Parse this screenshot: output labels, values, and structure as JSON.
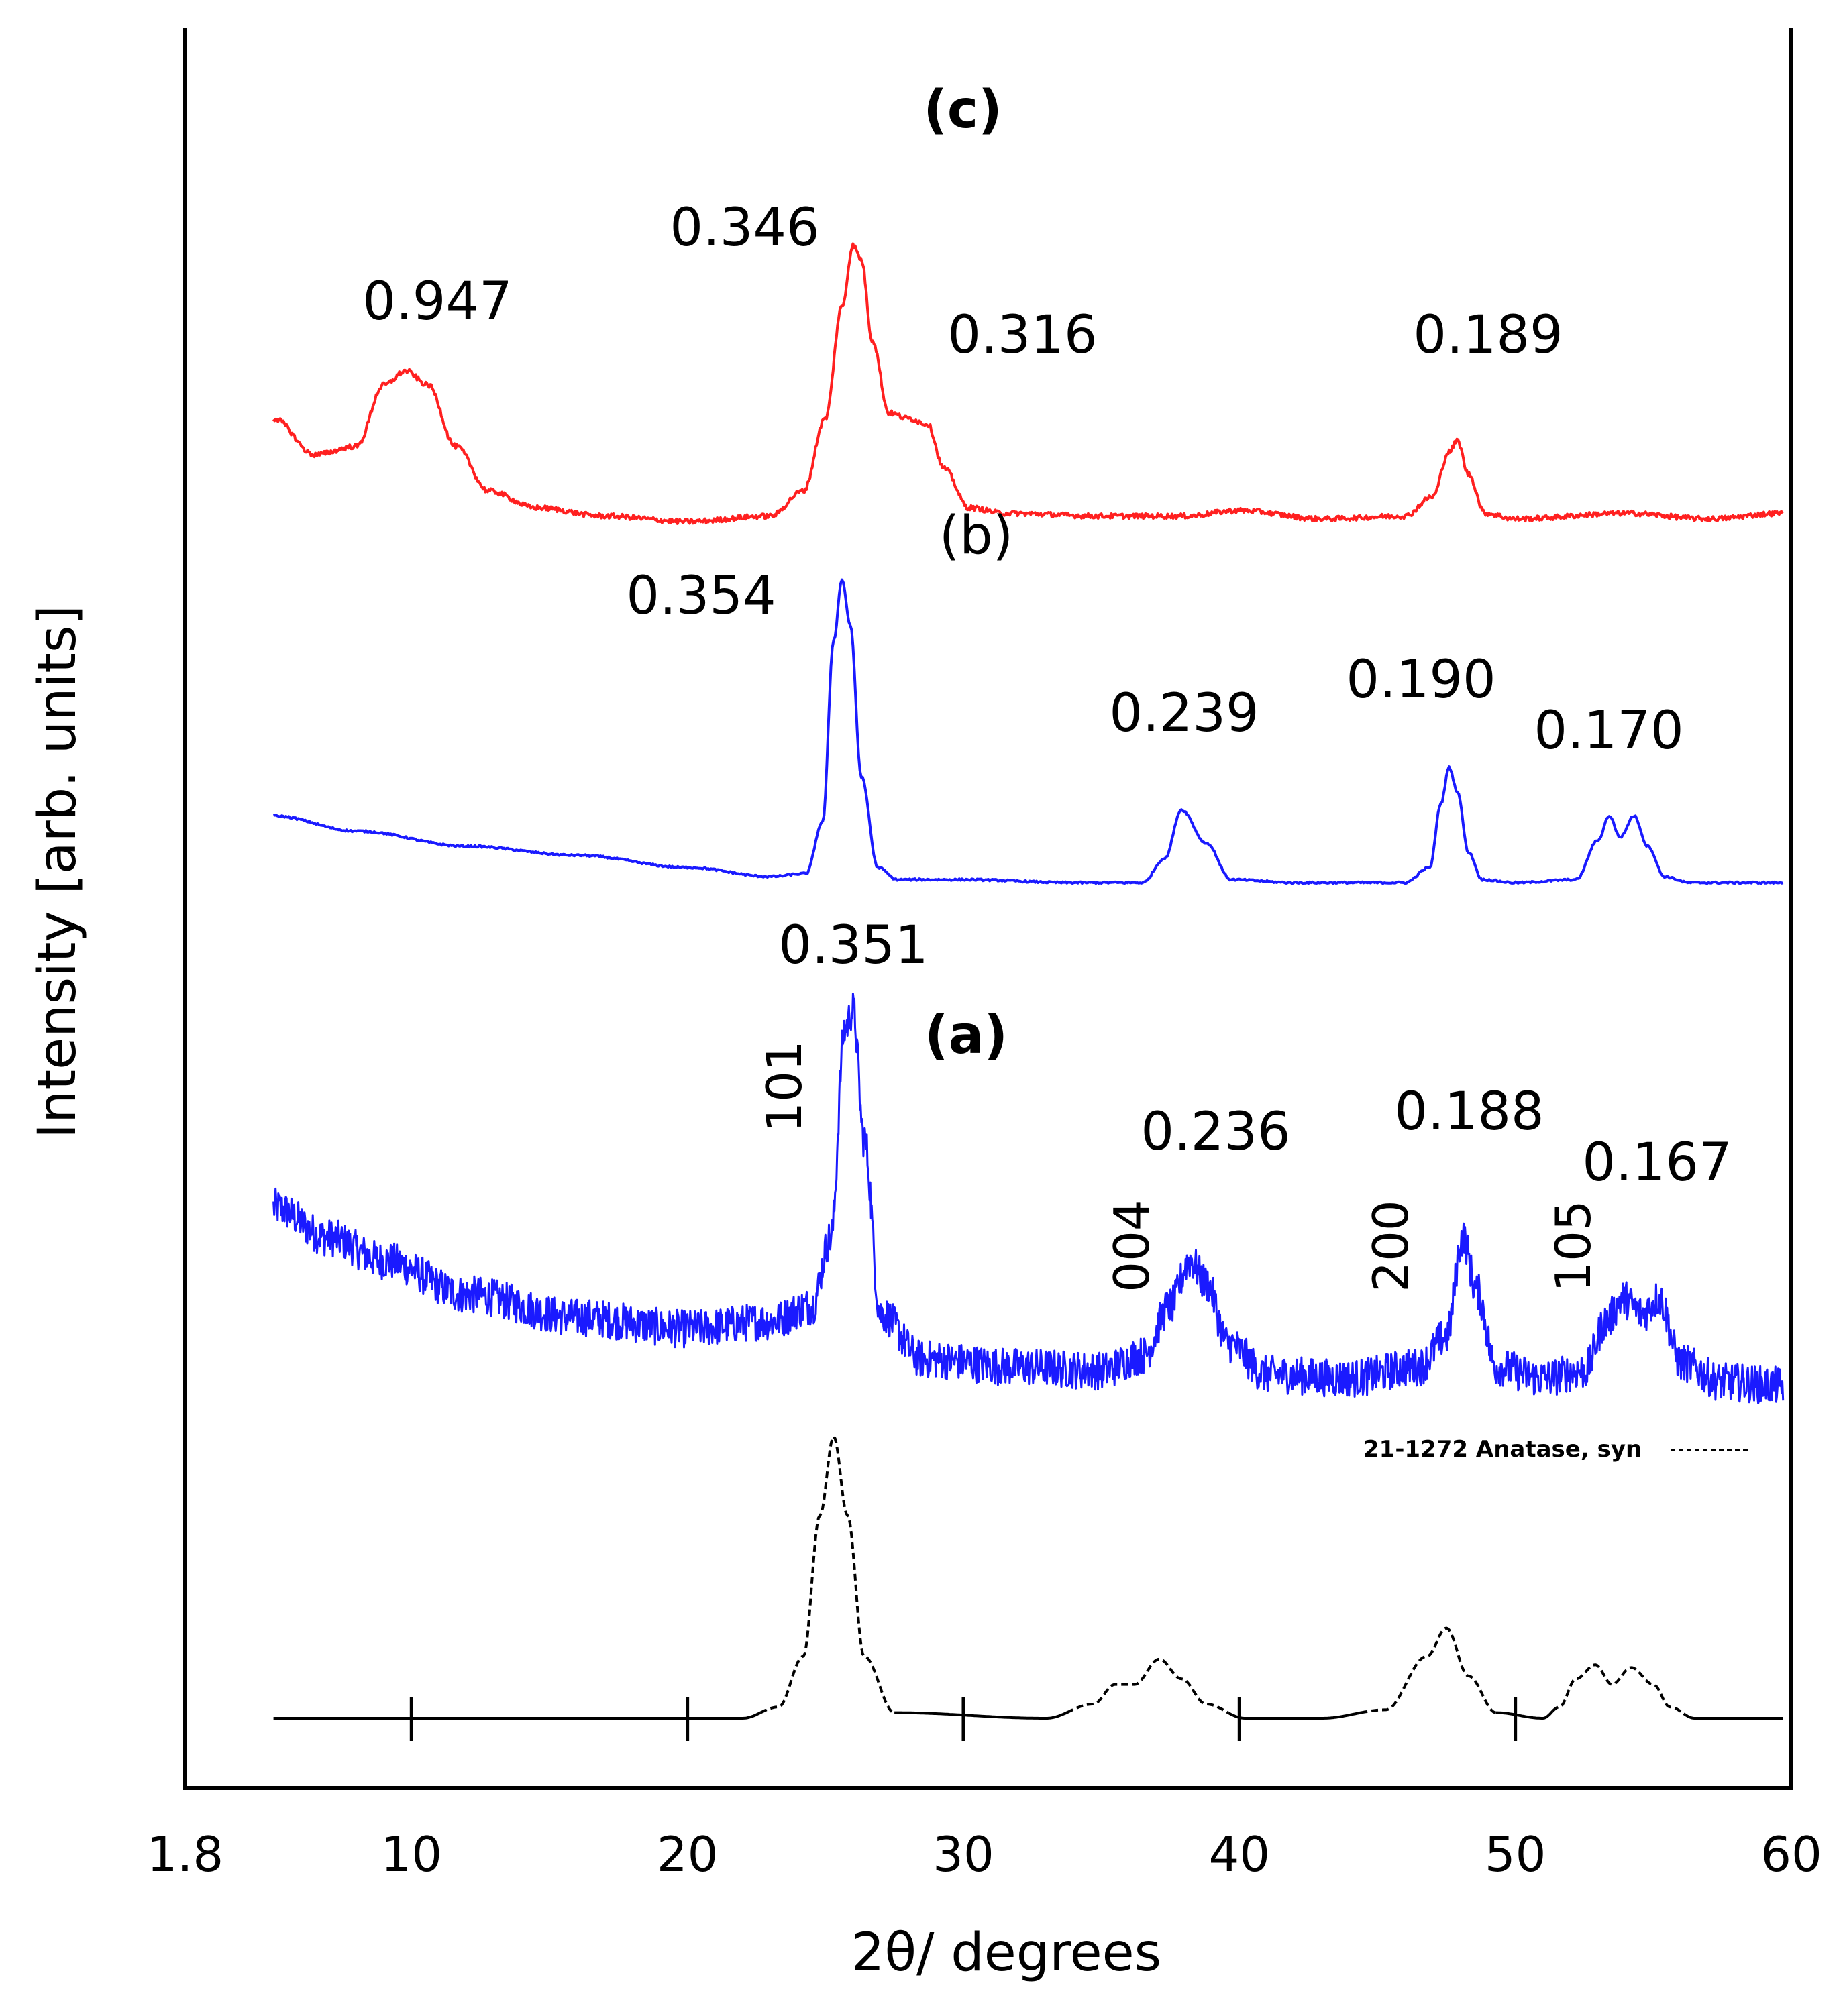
{
  "chart_data": {
    "type": "line",
    "title": "",
    "xlabel": "2θ/ degrees",
    "ylabel": "Intensity [arb. units]",
    "xlim": [
      1.8,
      60
    ],
    "x_tick_labels": [
      "1.8",
      "10",
      "20",
      "30",
      "40",
      "50",
      "60"
    ],
    "x_tick_values": [
      1.8,
      10,
      20,
      30,
      40,
      50,
      60
    ],
    "inner_tick_values": [
      10,
      20,
      30,
      40,
      50
    ],
    "reference": {
      "name": "21-1272 Anatase, syn",
      "style": "dashed",
      "color": "#000000",
      "baseline": 0,
      "x": [
        5,
        22,
        23.3,
        24.2,
        24.8,
        25.3,
        25.8,
        26.4,
        27.5,
        33,
        34.7,
        35.5,
        36.2,
        37.1,
        37.9,
        38.8,
        40.2,
        43,
        45.3,
        46.8,
        47.5,
        48.3,
        49.3,
        51,
        51.6,
        52.2,
        52.9,
        53.5,
        54.2,
        55,
        55.6,
        56.5,
        59.7
      ],
      "y": [
        0,
        0,
        0.04,
        0.22,
        0.72,
        1.0,
        0.72,
        0.22,
        0.02,
        0,
        0.05,
        0.12,
        0.12,
        0.21,
        0.14,
        0.05,
        0,
        0,
        0.03,
        0.22,
        0.32,
        0.15,
        0.02,
        0,
        0.04,
        0.14,
        0.19,
        0.12,
        0.18,
        0.12,
        0.04,
        0,
        0
      ]
    },
    "series": [
      {
        "name": "(a)",
        "color": "#1a1aff",
        "noisy": true,
        "x": [
          5,
          7,
          9,
          12,
          16,
          20,
          23,
          24.5,
          25.2,
          25.7,
          26.0,
          26.4,
          27.0,
          28.5,
          32,
          35,
          36.5,
          37.5,
          38.2,
          38.8,
          39.6,
          41,
          44,
          46.5,
          47.5,
          48.1,
          48.6,
          49.3,
          51,
          52.5,
          53.3,
          53.9,
          54.6,
          55.2,
          56,
          57.5,
          59.7
        ],
        "y": [
          0.48,
          0.4,
          0.34,
          0.25,
          0.19,
          0.16,
          0.18,
          0.22,
          0.4,
          0.95,
          1.0,
          0.66,
          0.2,
          0.08,
          0.06,
          0.05,
          0.09,
          0.22,
          0.34,
          0.28,
          0.12,
          0.04,
          0.03,
          0.06,
          0.14,
          0.4,
          0.26,
          0.06,
          0.03,
          0.05,
          0.18,
          0.24,
          0.2,
          0.24,
          0.07,
          0.02,
          0.01
        ],
        "peaks": [
          {
            "x": 25.9,
            "label": "0.351"
          },
          {
            "x": 38.3,
            "label": "0.236"
          },
          {
            "x": 48.0,
            "label": "0.188"
          },
          {
            "x": 53.9,
            "label": "0.167"
          }
        ],
        "hkl": [
          {
            "x": 24.0,
            "label": "101"
          },
          {
            "x": 35.9,
            "label": "004"
          },
          {
            "x": 46.4,
            "label": "200"
          },
          {
            "x": 52.1,
            "label": "105"
          }
        ]
      },
      {
        "name": "(b)",
        "color": "#1a1aff",
        "noisy": false,
        "x": [
          5,
          8,
          12,
          16,
          20,
          23,
          24.3,
          24.9,
          25.3,
          25.6,
          25.9,
          26.3,
          26.9,
          27.6,
          30,
          34,
          36.5,
          37.3,
          37.9,
          38.8,
          39.7,
          42,
          46,
          46.9,
          47.3,
          47.6,
          47.9,
          48.3,
          48.8,
          50,
          52.2,
          53.0,
          53.4,
          53.8,
          54.3,
          54.8,
          55.4,
          56.3,
          58,
          59.7
        ],
        "y": [
          0.22,
          0.17,
          0.12,
          0.09,
          0.05,
          0.02,
          0.03,
          0.2,
          0.8,
          1.0,
          0.85,
          0.35,
          0.05,
          0.01,
          0.01,
          0.0,
          0.0,
          0.08,
          0.24,
          0.13,
          0.01,
          0.0,
          0.0,
          0.05,
          0.26,
          0.38,
          0.3,
          0.1,
          0.01,
          0.0,
          0.01,
          0.14,
          0.22,
          0.15,
          0.22,
          0.12,
          0.02,
          0.0,
          0.0,
          0.0
        ],
        "peaks": [
          {
            "x": 25.6,
            "label": "0.354"
          },
          {
            "x": 38.3,
            "label": "0.239"
          },
          {
            "x": 47.7,
            "label": "0.190"
          },
          {
            "x": 53.8,
            "label": "0.170"
          }
        ]
      },
      {
        "name": "(c)",
        "color": "#ff2020",
        "noisy": false,
        "x": [
          5,
          6.5,
          8,
          9,
          9.8,
          10.6,
          11.6,
          12.8,
          14.5,
          17,
          20,
          23,
          24.2,
          25.0,
          25.6,
          26.0,
          26.3,
          26.7,
          27.3,
          28.0,
          28.7,
          29.3,
          30.2,
          31.5,
          35,
          38,
          40,
          43,
          46,
          47.0,
          47.6,
          47.9,
          48.3,
          48.9,
          50,
          54,
          57,
          59.7
        ],
        "y": [
          0.38,
          0.25,
          0.28,
          0.5,
          0.55,
          0.5,
          0.28,
          0.12,
          0.06,
          0.03,
          0.01,
          0.03,
          0.12,
          0.38,
          0.78,
          1.0,
          0.95,
          0.66,
          0.4,
          0.38,
          0.36,
          0.2,
          0.06,
          0.04,
          0.03,
          0.03,
          0.05,
          0.02,
          0.03,
          0.1,
          0.26,
          0.3,
          0.18,
          0.04,
          0.02,
          0.04,
          0.02,
          0.04
        ],
        "peaks": [
          {
            "x": 9.9,
            "label": "0.947"
          },
          {
            "x": 26.0,
            "label": "0.346"
          },
          {
            "x": 28.5,
            "label": "0.316"
          },
          {
            "x": 47.7,
            "label": "0.189"
          }
        ]
      }
    ]
  }
}
